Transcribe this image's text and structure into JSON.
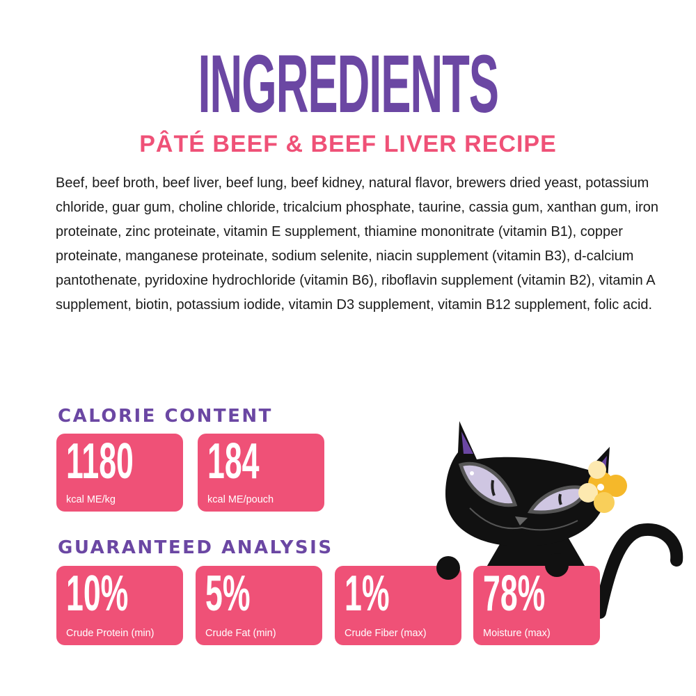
{
  "title": "INGREDIENTS",
  "subtitle": "PÂTÉ BEEF & BEEF LIVER RECIPE",
  "ingredients": "Beef, beef broth, beef liver, beef lung, beef kidney, natural flavor, brewers dried yeast, potassium chloride, guar gum, choline chloride, tricalcium phosphate, taurine, cassia gum, xanthan gum, iron proteinate, zinc proteinate, vitamin E supplement, thiamine mononitrate (vitamin B1), copper proteinate, manganese proteinate, sodium selenite, niacin supplement (vitamin B3), d-calcium pantothenate, pyridoxine hydrochloride (vitamin B6), riboflavin supplement (vitamin B2), vitamin A supplement, biotin, potassium iodide, vitamin D3 supplement, vitamin B12 supplement, folic acid.",
  "calorie": {
    "heading": "CALORIE CONTENT",
    "cards": [
      {
        "value": "1180",
        "label": "kcal ME/kg"
      },
      {
        "value": "184",
        "label": "kcal ME/pouch"
      }
    ]
  },
  "analysis": {
    "heading": "GUARANTEED ANALYSIS",
    "cards": [
      {
        "value": "10%",
        "label": "Crude Protein (min)"
      },
      {
        "value": "5%",
        "label": "Crude Fat (min)"
      },
      {
        "value": "1%",
        "label": "Crude Fiber (max)"
      },
      {
        "value": "78%",
        "label": "Moisture (max)"
      }
    ]
  },
  "colors": {
    "purple": "#6b47a3",
    "pink": "#ef5177",
    "flower": "#f5b82a"
  },
  "icons": {
    "mascot": "black-cat-illustration"
  }
}
